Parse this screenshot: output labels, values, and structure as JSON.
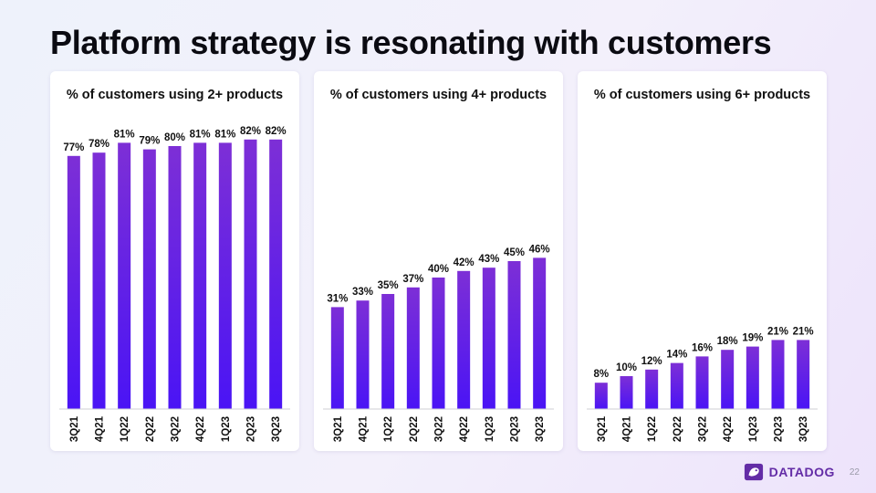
{
  "slide": {
    "title": "Platform strategy is resonating with customers",
    "page_number": "22",
    "logo_text": "DATADOG"
  },
  "colors": {
    "bar_top": "#7d2fd6",
    "bar_bottom": "#4a14f5",
    "axis": "#cfcfd6"
  },
  "chart_data": [
    {
      "type": "bar",
      "title": "% of customers using 2+ products",
      "categories": [
        "3Q21",
        "4Q21",
        "1Q22",
        "2Q22",
        "3Q22",
        "4Q22",
        "1Q23",
        "2Q23",
        "3Q23"
      ],
      "values": [
        77,
        78,
        81,
        79,
        80,
        81,
        81,
        82,
        82
      ],
      "value_suffix": "%",
      "ylim": [
        0,
        85
      ]
    },
    {
      "type": "bar",
      "title": "% of customers using 4+ products",
      "categories": [
        "3Q21",
        "4Q21",
        "1Q22",
        "2Q22",
        "3Q22",
        "4Q22",
        "1Q23",
        "2Q23",
        "3Q23"
      ],
      "values": [
        31,
        33,
        35,
        37,
        40,
        42,
        43,
        45,
        46
      ],
      "value_suffix": "%",
      "ylim": [
        0,
        85
      ]
    },
    {
      "type": "bar",
      "title": "% of customers using 6+ products",
      "categories": [
        "3Q21",
        "4Q21",
        "1Q22",
        "2Q22",
        "3Q22",
        "4Q22",
        "1Q23",
        "2Q23",
        "3Q23"
      ],
      "values": [
        8,
        10,
        12,
        14,
        16,
        18,
        19,
        21,
        21
      ],
      "value_suffix": "%",
      "ylim": [
        0,
        85
      ]
    }
  ]
}
